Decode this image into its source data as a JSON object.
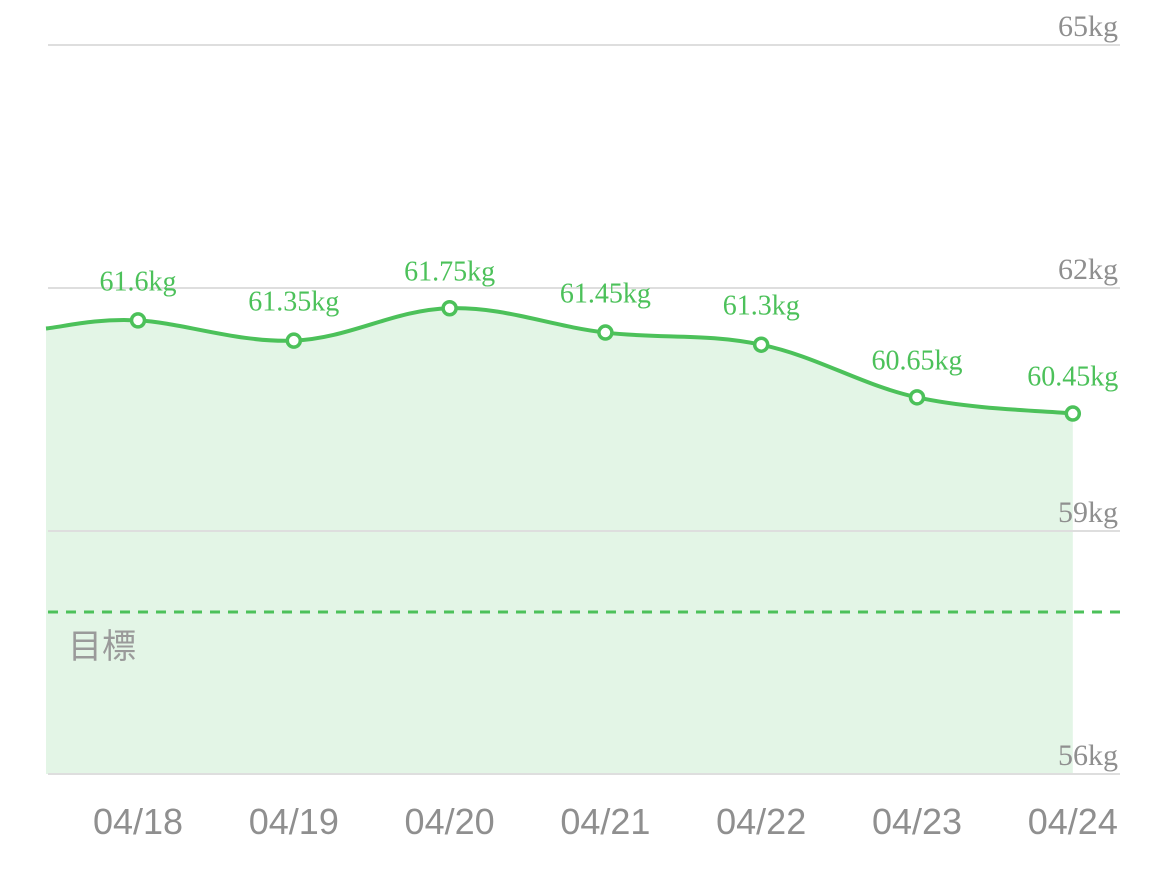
{
  "chart_data": {
    "type": "area",
    "categories": [
      "04/18",
      "04/19",
      "04/20",
      "04/21",
      "04/22",
      "04/23",
      "04/24"
    ],
    "series": [
      {
        "values": [
          61.6,
          61.35,
          61.75,
          61.45,
          61.3,
          60.65,
          60.45
        ]
      }
    ],
    "data_labels": [
      "61.6kg",
      "61.35kg",
      "61.75kg",
      "61.45kg",
      "61.3kg",
      "60.65kg",
      "60.45kg"
    ],
    "yticks": [
      {
        "value": 65,
        "label": "65kg"
      },
      {
        "value": 62,
        "label": "62kg"
      },
      {
        "value": 59,
        "label": "59kg"
      },
      {
        "value": 56,
        "label": "56kg"
      }
    ],
    "ylim": [
      56,
      65
    ],
    "leading_value": 61.5,
    "goal": {
      "value": 58,
      "label": "目標"
    },
    "grid": true,
    "colors": {
      "line": "#4cc15a",
      "fill": "#e3f5e6",
      "grid": "#dedede",
      "axis_text": "#8f8f8f"
    }
  }
}
